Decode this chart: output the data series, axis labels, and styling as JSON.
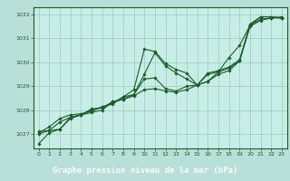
{
  "title": "Graphe pression niveau de la mer (hPa)",
  "bg_color": "#b8e0d8",
  "plot_bg_color": "#c8ede6",
  "grid_color": "#99ccbb",
  "line_color": "#1a5c2a",
  "marker_color": "#1a5c2a",
  "title_bg_color": "#2d7a3a",
  "title_text_color": "#ffffff",
  "xlim": [
    -0.5,
    23.5
  ],
  "ylim": [
    1026.4,
    1032.3
  ],
  "yticks": [
    1027,
    1028,
    1029,
    1030,
    1031,
    1032
  ],
  "xticks": [
    0,
    1,
    2,
    3,
    4,
    5,
    6,
    7,
    8,
    9,
    10,
    11,
    12,
    13,
    14,
    15,
    16,
    17,
    18,
    19,
    20,
    21,
    22,
    23
  ],
  "series": [
    [
      1026.6,
      1027.05,
      1027.2,
      1027.7,
      1027.8,
      1028.0,
      1028.1,
      1028.35,
      1028.45,
      1028.65,
      1029.5,
      1030.4,
      1029.85,
      1029.55,
      1029.3,
      1029.05,
      1029.5,
      1029.6,
      1029.75,
      1030.05,
      1031.55,
      1031.9,
      1031.9,
      1031.85
    ],
    [
      1027.05,
      1027.3,
      1027.65,
      1027.8,
      1027.85,
      1027.95,
      1028.15,
      1028.25,
      1028.55,
      1028.85,
      1030.55,
      1030.45,
      1029.95,
      1029.7,
      1029.55,
      1029.05,
      1029.55,
      1029.65,
      1029.8,
      1030.1,
      1031.6,
      1031.9,
      1031.9,
      1031.85
    ],
    [
      1027.0,
      1027.15,
      1027.5,
      1027.7,
      1027.8,
      1028.05,
      1028.1,
      1028.3,
      1028.55,
      1028.65,
      1029.3,
      1029.35,
      1028.9,
      1028.8,
      1029.0,
      1029.05,
      1029.2,
      1029.5,
      1029.65,
      1030.05,
      1031.5,
      1031.75,
      1031.85,
      1031.9
    ],
    [
      1027.1,
      1027.15,
      1027.2,
      1027.65,
      1027.8,
      1027.9,
      1028.0,
      1028.35,
      1028.45,
      1028.6,
      1028.85,
      1028.9,
      1028.8,
      1028.75,
      1028.85,
      1029.05,
      1029.2,
      1029.6,
      1030.2,
      1030.7,
      1031.55,
      1031.8,
      1031.85,
      1031.85
    ]
  ]
}
